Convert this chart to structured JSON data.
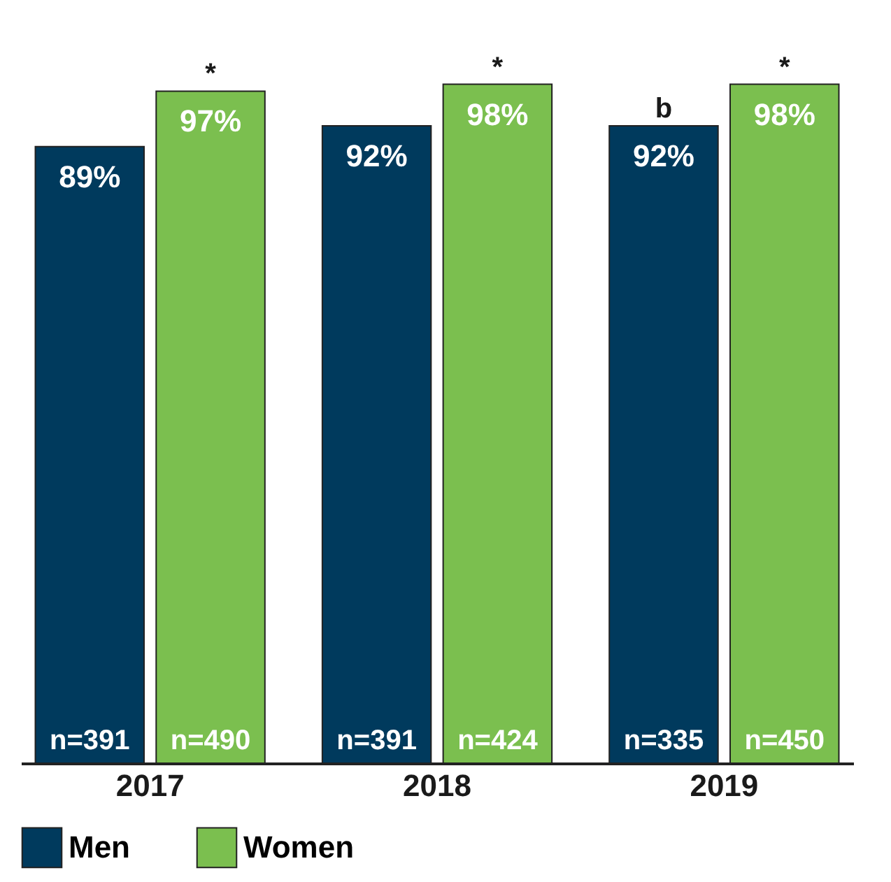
{
  "chart_data": {
    "type": "bar",
    "categories": [
      "2017",
      "2018",
      "2019"
    ],
    "series": [
      {
        "name": "Men",
        "color": "#003a5d",
        "values": [
          89,
          92,
          92
        ],
        "value_labels": [
          "89%",
          "92%",
          "92%"
        ]
      },
      {
        "name": "Women",
        "color": "#7bbf4f",
        "values": [
          97,
          98,
          98
        ],
        "value_labels": [
          "97%",
          "98%",
          "98%"
        ]
      }
    ],
    "annotations": [
      {
        "text": "*",
        "x": "2017",
        "y": 97
      },
      {
        "text": "*",
        "x": "2018",
        "y": 98
      },
      {
        "text": "b",
        "x": "2019",
        "y": 92
      },
      {
        "text": "*",
        "x": "2019",
        "y": 98
      },
      {
        "text": "n=391",
        "x": "2017",
        "y": 0
      },
      {
        "text": "n=490",
        "x": "2017",
        "y": 0
      },
      {
        "text": "n=391",
        "x": "2018",
        "y": 0
      },
      {
        "text": "n=424",
        "x": "2018",
        "y": 0
      },
      {
        "text": "n=335",
        "x": "2019",
        "y": 0
      },
      {
        "text": "n=450",
        "x": "2019",
        "y": 0
      }
    ],
    "legend": "bottom",
    "grid": false
  }
}
